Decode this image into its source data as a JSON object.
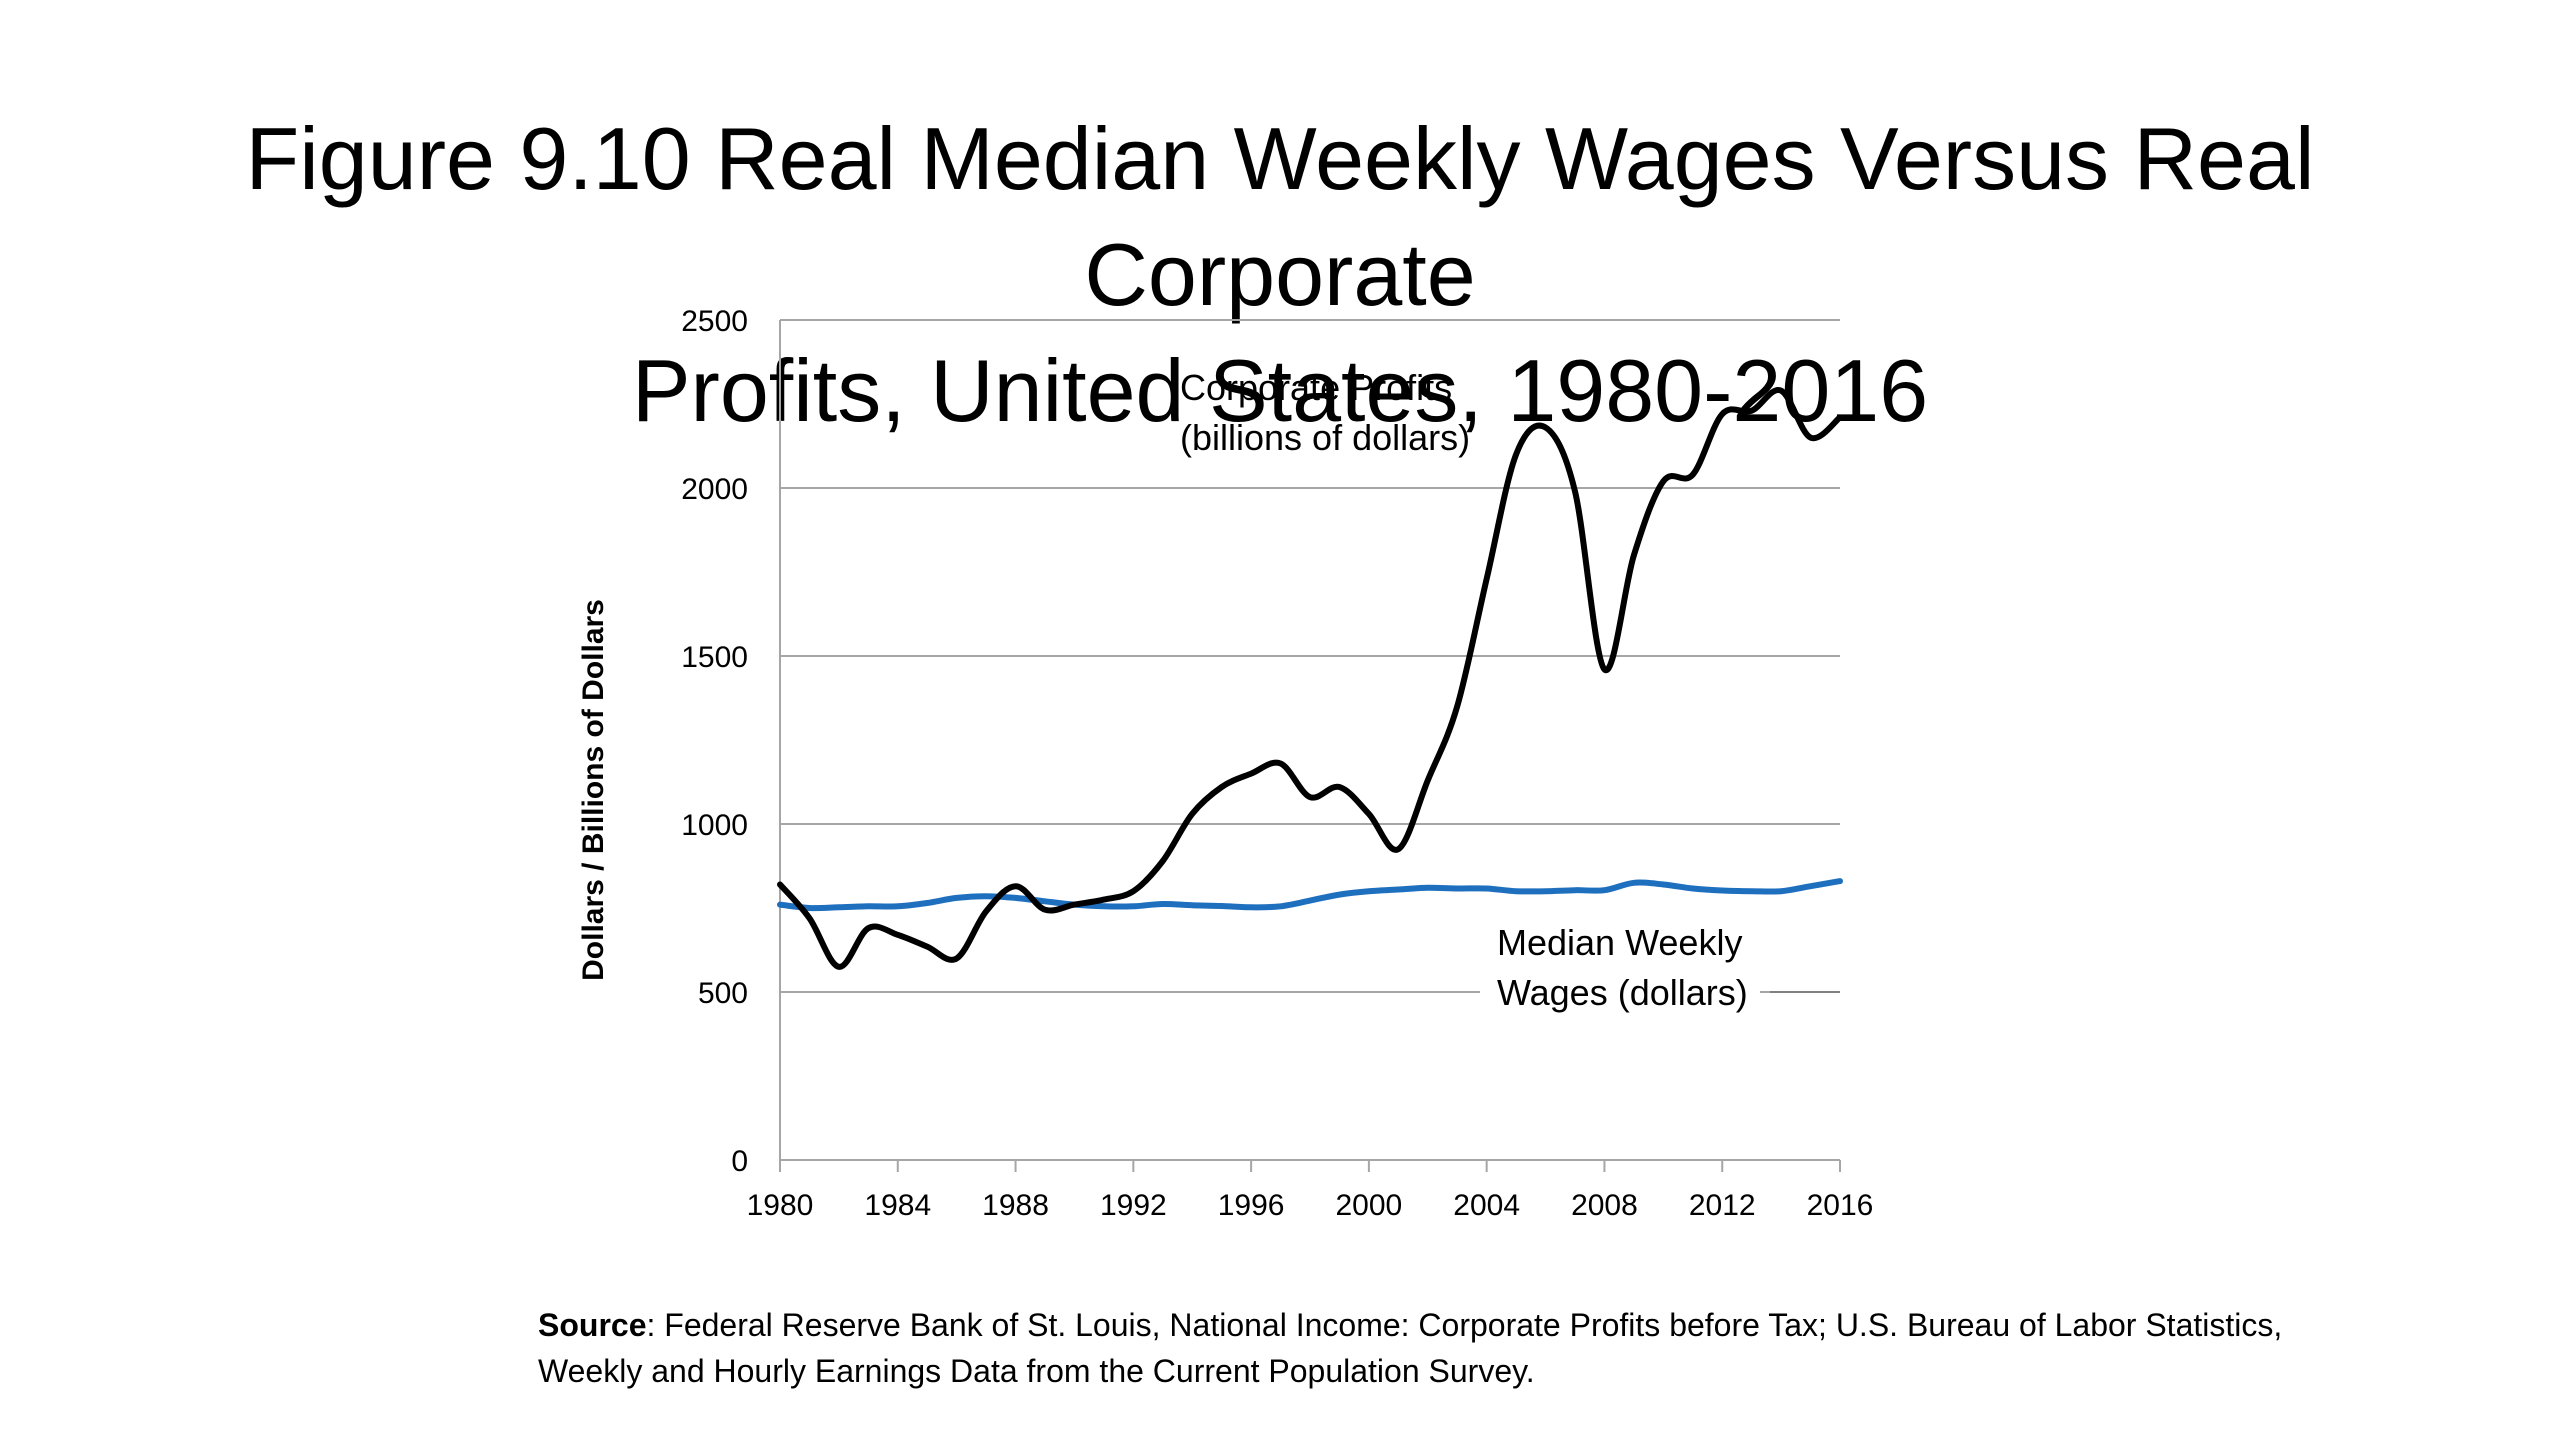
{
  "title": {
    "line1": "Figure 9.10 Real Median Weekly Wages Versus Real Corporate",
    "line2": "Profits, United States, 1980-2016"
  },
  "source": {
    "label": "Source",
    "text": ": Federal Reserve Bank of St. Louis, National Income: Corporate Profits before Tax; U.S. Bureau of Labor Statistics, Weekly and Hourly Earnings Data from the Current Population Survey."
  },
  "chart_data": {
    "type": "line",
    "title": "",
    "xlabel": "",
    "ylabel": "Dollars / Billions of Dollars",
    "xlim": [
      1980,
      2016
    ],
    "ylim": [
      0,
      2500
    ],
    "xticks": [
      1980,
      1984,
      1988,
      1992,
      1996,
      2000,
      2004,
      2008,
      2012,
      2016
    ],
    "yticks": [
      0,
      500,
      1000,
      1500,
      2000,
      2500
    ],
    "grid": true,
    "legend": "none",
    "annotations": [
      {
        "series": "profits",
        "lines": [
          "Corporate Profits",
          "(billions of dollars)"
        ]
      },
      {
        "series": "wages",
        "lines": [
          "Median Weekly",
          "Wages (dollars)"
        ]
      }
    ],
    "series": [
      {
        "id": "profits",
        "color": "#000000",
        "points": [
          [
            1980,
            820
          ],
          [
            1981,
            720
          ],
          [
            1982,
            575
          ],
          [
            1983,
            690
          ],
          [
            1984,
            670
          ],
          [
            1985,
            635
          ],
          [
            1986,
            600
          ],
          [
            1987,
            740
          ],
          [
            1988,
            815
          ],
          [
            1989,
            745
          ],
          [
            1990,
            760
          ],
          [
            1991,
            775
          ],
          [
            1992,
            800
          ],
          [
            1993,
            890
          ],
          [
            1994,
            1030
          ],
          [
            1995,
            1110
          ],
          [
            1996,
            1150
          ],
          [
            1997,
            1180
          ],
          [
            1998,
            1080
          ],
          [
            1999,
            1110
          ],
          [
            2000,
            1030
          ],
          [
            2001,
            925
          ],
          [
            2002,
            1130
          ],
          [
            2003,
            1350
          ],
          [
            2004,
            1730
          ],
          [
            2005,
            2100
          ],
          [
            2006,
            2180
          ],
          [
            2007,
            1990
          ],
          [
            2008,
            1460
          ],
          [
            2009,
            1800
          ],
          [
            2010,
            2020
          ],
          [
            2011,
            2040
          ],
          [
            2012,
            2220
          ],
          [
            2013,
            2230
          ],
          [
            2014,
            2290
          ],
          [
            2015,
            2150
          ],
          [
            2016,
            2210
          ]
        ]
      },
      {
        "id": "wages",
        "color": "#1f6fbf",
        "points": [
          [
            1980,
            760
          ],
          [
            1981,
            750
          ],
          [
            1982,
            752
          ],
          [
            1983,
            755
          ],
          [
            1984,
            755
          ],
          [
            1985,
            765
          ],
          [
            1986,
            780
          ],
          [
            1987,
            785
          ],
          [
            1988,
            780
          ],
          [
            1989,
            770
          ],
          [
            1990,
            760
          ],
          [
            1991,
            755
          ],
          [
            1992,
            755
          ],
          [
            1993,
            762
          ],
          [
            1994,
            758
          ],
          [
            1995,
            756
          ],
          [
            1996,
            752
          ],
          [
            1997,
            755
          ],
          [
            1998,
            772
          ],
          [
            1999,
            790
          ],
          [
            2000,
            800
          ],
          [
            2001,
            805
          ],
          [
            2002,
            810
          ],
          [
            2003,
            808
          ],
          [
            2004,
            808
          ],
          [
            2005,
            800
          ],
          [
            2006,
            800
          ],
          [
            2007,
            803
          ],
          [
            2008,
            803
          ],
          [
            2009,
            825
          ],
          [
            2010,
            820
          ],
          [
            2011,
            808
          ],
          [
            2012,
            802
          ],
          [
            2013,
            800
          ],
          [
            2014,
            800
          ],
          [
            2015,
            815
          ],
          [
            2016,
            830
          ]
        ]
      }
    ]
  }
}
